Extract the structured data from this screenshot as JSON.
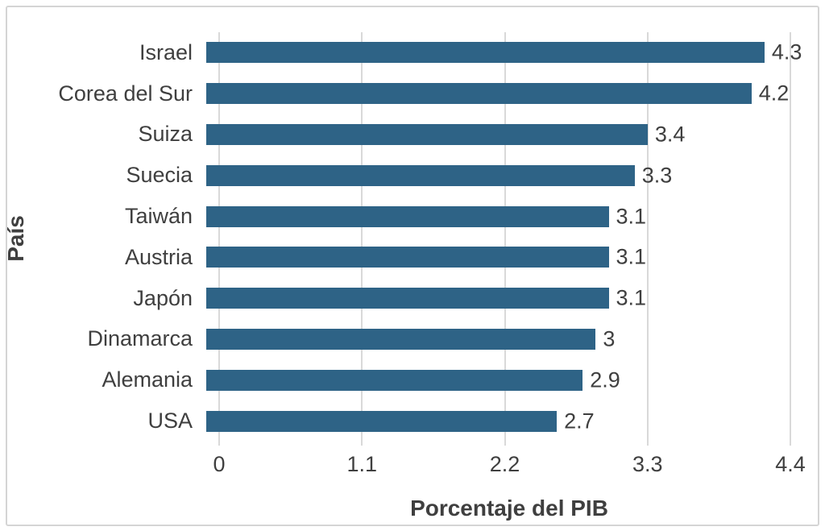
{
  "chart_data": {
    "type": "bar",
    "orientation": "horizontal",
    "title": "",
    "xlabel": "Porcentaje del PIB",
    "ylabel": "País",
    "categories": [
      "Israel",
      "Corea del Sur",
      "Suiza",
      "Suecia",
      "Taiwán",
      "Austria",
      "Japón",
      "Dinamarca",
      "Alemania",
      "USA"
    ],
    "values": [
      4.3,
      4.2,
      3.4,
      3.3,
      3.1,
      3.1,
      3.1,
      3,
      2.9,
      2.7
    ],
    "value_labels": [
      "4.3",
      "4.2",
      "3.4",
      "3.3",
      "3.1",
      "3.1",
      "3.1",
      "3",
      "2.9",
      "2.7"
    ],
    "xlim": [
      0,
      4.4
    ],
    "xticks": [
      0,
      1.1,
      2.2,
      3.3,
      4.4
    ],
    "xtick_labels": [
      "0",
      "1.1",
      "2.2",
      "3.3",
      "4.4"
    ],
    "grid": "vertical-only",
    "legend": "none"
  },
  "colors": {
    "bar": "#2e6386",
    "grid": "#d9d9d9",
    "text": "#3f3f3f",
    "frame_border": "#d5d5d5",
    "background": "#ffffff"
  }
}
